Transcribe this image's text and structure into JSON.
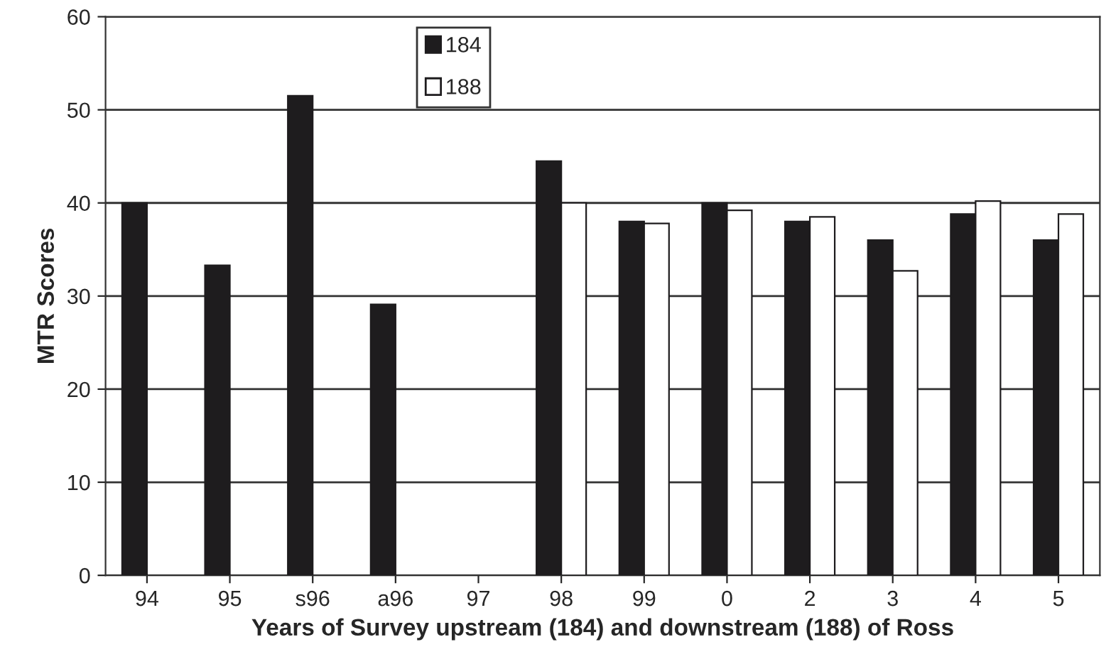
{
  "chart_data": {
    "type": "bar",
    "xlabel": "Years of Survey upstream (184) and downstream (188) of Ross",
    "ylabel": "MTR Scores",
    "categories": [
      "94",
      "95",
      "s96",
      "a96",
      "97",
      "98",
      "99",
      "0",
      "2",
      "3",
      "4",
      "5"
    ],
    "series": [
      {
        "name": "184",
        "color": "#1e1c1e",
        "values": [
          40,
          33.3,
          51.5,
          29.1,
          null,
          44.5,
          38,
          40,
          38,
          36,
          38.8,
          36
        ]
      },
      {
        "name": "188",
        "color": "#ffffff",
        "values": [
          null,
          null,
          null,
          null,
          null,
          40,
          37.8,
          39.2,
          38.5,
          32.7,
          40.2,
          38.8
        ]
      }
    ],
    "ylim": [
      0,
      60
    ],
    "yticks": [
      0,
      10,
      20,
      30,
      40,
      50,
      60
    ],
    "grid": "y",
    "legend": "top"
  }
}
